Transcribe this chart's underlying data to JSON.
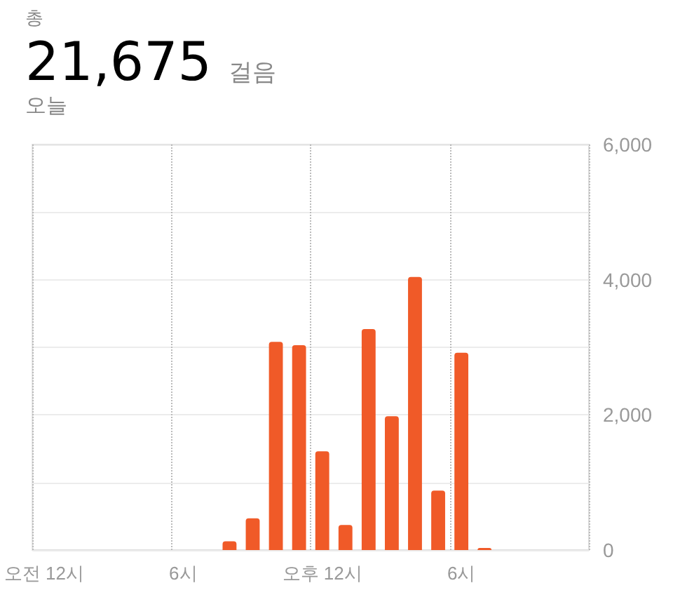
{
  "chart_data": {
    "type": "bar",
    "title": "총",
    "subtitle": "21,675 걸음",
    "annotations": [
      "오늘"
    ],
    "categories": [
      "오전 12시",
      null,
      null,
      null,
      null,
      null,
      "6시",
      null,
      null,
      null,
      null,
      null,
      "오후 12시",
      null,
      null,
      null,
      null,
      null,
      "6시",
      null,
      null,
      null,
      null,
      null
    ],
    "values": [
      0,
      0,
      0,
      0,
      0,
      0,
      0,
      0,
      130,
      470,
      3080,
      3030,
      1460,
      370,
      3270,
      1980,
      4040,
      880,
      2920,
      30,
      0,
      0,
      0,
      0
    ],
    "color": "#f05a28",
    "ylim": [
      0,
      6000
    ],
    "yticks": [
      0,
      {
        "value": 2000,
        "label": "2,000"
      },
      {
        "value": 4000,
        "label": "4,000"
      },
      {
        "value": 6000,
        "label": "6,000"
      }
    ],
    "grid": true
  }
}
